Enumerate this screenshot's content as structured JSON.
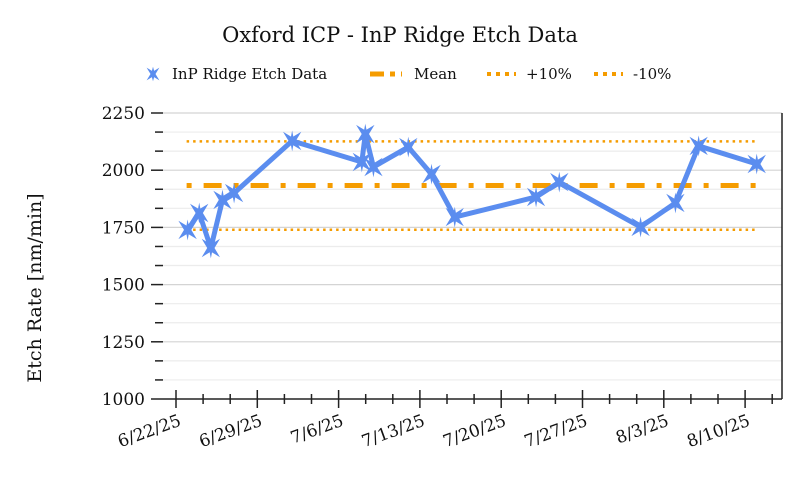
{
  "chart_data": {
    "type": "line",
    "title": "Oxford ICP - InP Ridge Etch Data",
    "xlabel": "",
    "ylabel": "Etch Rate [nm/min]",
    "ylim": [
      1000,
      2250
    ],
    "yticks": [
      "1000",
      "1250",
      "1500",
      "1750",
      "2000",
      "2250"
    ],
    "xticks": [
      "6/22/25",
      "6/29/25",
      "7/6/25",
      "7/13/25",
      "7/20/25",
      "7/27/25",
      "8/3/25",
      "8/10/25"
    ],
    "grid": true,
    "legend_position": "top",
    "legend": [
      "InP Ridge Etch Data",
      "Mean",
      "+10%",
      "-10%"
    ],
    "series": [
      {
        "name": "InP Ridge Etch Data",
        "color": "#5b8def",
        "x": [
          "6/23/25",
          "6/24/25",
          "6/25/25",
          "6/26/25",
          "6/27/25",
          "7/2/25",
          "7/8/25",
          "7/8/25",
          "7/9/25",
          "7/12/25",
          "7/14/25",
          "7/16/25",
          "7/23/25",
          "7/25/25",
          "8/1/25",
          "8/4/25",
          "8/6/25",
          "8/11/25"
        ],
        "values": [
          1739,
          1813,
          1660,
          1870,
          1900,
          2128,
          2036,
          2158,
          2014,
          2101,
          1983,
          1795,
          1883,
          1948,
          1752,
          1857,
          2106,
          2027
        ]
      },
      {
        "name": "Mean",
        "color": "#f59c00",
        "value": 1933
      },
      {
        "name": "+10%",
        "color": "#f59c00",
        "value": 2126
      },
      {
        "name": "-10%",
        "color": "#f59c00",
        "value": 1740
      }
    ]
  }
}
